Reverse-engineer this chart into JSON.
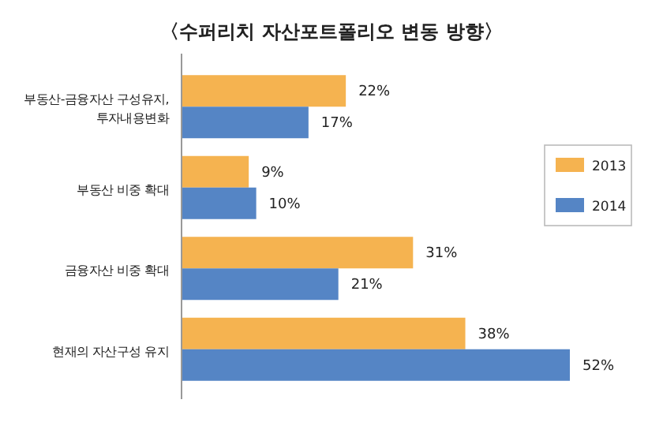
{
  "chart_data": {
    "type": "bar",
    "orientation": "horizontal",
    "title": "〈수퍼리치 자산포트폴리오 변동 방향〉",
    "categories": [
      "부동산-금융자산 구성유지, 투자내용변화",
      "부동산 비중 확대",
      "금융자산 비중 확대",
      "현재의 자산구성 유지"
    ],
    "series": [
      {
        "name": "2013",
        "color": "#f5b350",
        "values": [
          22,
          9,
          31,
          38
        ],
        "value_labels": [
          "22%",
          "9%",
          "31%",
          "38%"
        ]
      },
      {
        "name": "2014",
        "color": "#5585c5",
        "values": [
          17,
          10,
          21,
          52
        ],
        "value_labels": [
          "17%",
          "10%",
          "21%",
          "52%"
        ]
      }
    ],
    "legend": "right"
  }
}
